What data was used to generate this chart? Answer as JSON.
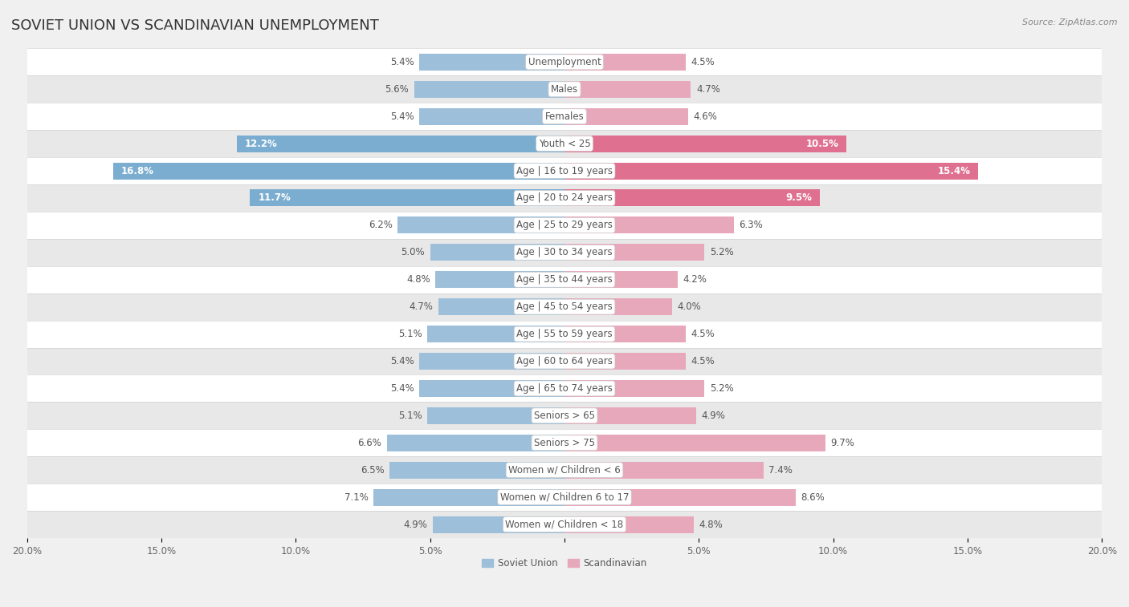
{
  "title": "SOVIET UNION VS SCANDINAVIAN UNEMPLOYMENT",
  "source": "Source: ZipAtlas.com",
  "categories": [
    "Unemployment",
    "Males",
    "Females",
    "Youth < 25",
    "Age | 16 to 19 years",
    "Age | 20 to 24 years",
    "Age | 25 to 29 years",
    "Age | 30 to 34 years",
    "Age | 35 to 44 years",
    "Age | 45 to 54 years",
    "Age | 55 to 59 years",
    "Age | 60 to 64 years",
    "Age | 65 to 74 years",
    "Seniors > 65",
    "Seniors > 75",
    "Women w/ Children < 6",
    "Women w/ Children 6 to 17",
    "Women w/ Children < 18"
  ],
  "soviet_values": [
    5.4,
    5.6,
    5.4,
    12.2,
    16.8,
    11.7,
    6.2,
    5.0,
    4.8,
    4.7,
    5.1,
    5.4,
    5.4,
    5.1,
    6.6,
    6.5,
    7.1,
    4.9
  ],
  "scandinavian_values": [
    4.5,
    4.7,
    4.6,
    10.5,
    15.4,
    9.5,
    6.3,
    5.2,
    4.2,
    4.0,
    4.5,
    4.5,
    5.2,
    4.9,
    9.7,
    7.4,
    8.6,
    4.8
  ],
  "soviet_color_normal": "#9dbfda",
  "soviet_color_highlight": "#7aadd0",
  "scandinavian_color_normal": "#e8a8bb",
  "scandinavian_color_highlight": "#e07090",
  "highlight_indices": [
    3,
    4,
    5
  ],
  "bar_height": 0.62,
  "xlim": 20.0,
  "background_color": "#f0f0f0",
  "row_bg_colors": [
    "#ffffff",
    "#e8e8e8"
  ],
  "title_fontsize": 13,
  "label_fontsize": 8.5,
  "value_fontsize": 8.5,
  "tick_fontsize": 8.5,
  "label_box_color": "#ffffff",
  "label_text_color": "#555555",
  "value_text_color_normal": "#555555",
  "value_text_color_highlight": "#ffffff",
  "legend_soviet": "Soviet Union",
  "legend_scandinavian": "Scandinavian"
}
